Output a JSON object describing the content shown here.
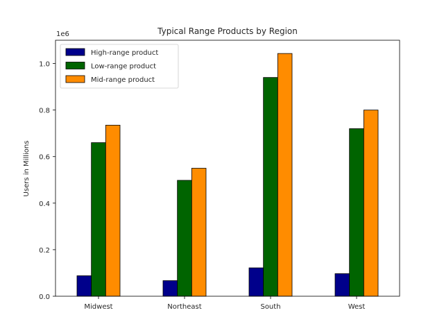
{
  "chart_data": {
    "type": "bar",
    "title": "Typical Range Products by Region",
    "xlabel": "",
    "ylabel": "Users in Millions",
    "y_offset_label": "1e6",
    "categories": [
      "Midwest",
      "Northeast",
      "South",
      "West"
    ],
    "series": [
      {
        "name": "High-range product",
        "color": "#00008b",
        "values": [
          88000,
          67000,
          122000,
          97000
        ]
      },
      {
        "name": "Low-range product",
        "color": "#006400",
        "values": [
          660000,
          498000,
          940000,
          720000
        ]
      },
      {
        "name": "Mid-range product",
        "color": "#ff8c00",
        "values": [
          735000,
          550000,
          1043000,
          800000
        ]
      }
    ],
    "ylim": [
      0,
      1100000
    ],
    "yticks": [
      0,
      200000,
      400000,
      600000,
      800000,
      1000000
    ],
    "ytick_labels": [
      "0.0",
      "0.2",
      "0.4",
      "0.6",
      "0.8",
      "1.0"
    ],
    "grid": false,
    "legend_position": "upper left"
  }
}
